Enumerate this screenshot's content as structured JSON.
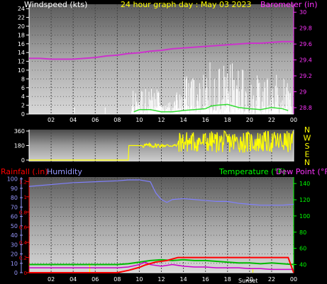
{
  "chart_data": [
    {
      "type": "line",
      "title": "24 hour graph day : May 03 2023",
      "ylabel_left": "Windspeed (kts)",
      "ylabel_right": "Barometer (in)",
      "x_ticks": [
        "02",
        "04",
        "06",
        "08",
        "10",
        "12",
        "14",
        "16",
        "18",
        "20",
        "22",
        "00"
      ],
      "xlim": [
        0,
        24
      ],
      "y_left_ticks": [
        "0",
        "2",
        "4",
        "6",
        "8",
        "10",
        "12",
        "14",
        "16",
        "18",
        "20",
        "22",
        "24"
      ],
      "ylim_left": [
        0,
        25
      ],
      "y_right_ticks": [
        "28.8",
        "29",
        "29.2",
        "29.4",
        "29.6",
        "29.8",
        "30"
      ],
      "ylim_right": [
        28.72,
        30.1
      ],
      "colors": {
        "barometer": "#cc33cc",
        "wind_speed": "#ffffff",
        "wind_avg": "#33dd33",
        "title": "#ffff00",
        "right_axis": "#ff33ff",
        "left_axis": "#ffffff",
        "frame": "#ffffff"
      },
      "series": [
        {
          "key": "barometer",
          "x": [
            0,
            1,
            2,
            3,
            4,
            5,
            6,
            7,
            8,
            9,
            10,
            11,
            12,
            13,
            14,
            15,
            16,
            17,
            18,
            19,
            20,
            21,
            22,
            23,
            24
          ],
          "values": [
            29.42,
            29.42,
            29.41,
            29.41,
            29.41,
            29.42,
            29.43,
            29.45,
            29.46,
            29.48,
            29.49,
            29.51,
            29.52,
            29.54,
            29.55,
            29.56,
            29.57,
            29.58,
            29.59,
            29.6,
            29.61,
            29.61,
            29.62,
            29.63,
            29.63
          ]
        },
        {
          "key": "wind_avg",
          "x": [
            9.5,
            10,
            11,
            12,
            13,
            14,
            15,
            16,
            16.5,
            17,
            18,
            19,
            20,
            21,
            22,
            23,
            23.5
          ],
          "values": [
            0.5,
            1,
            1,
            0.5,
            0.5,
            0.8,
            1,
            1.2,
            1.8,
            2,
            2.2,
            1.5,
            1.2,
            1,
            1.5,
            1.2,
            0.8
          ]
        }
      ]
    },
    {
      "type": "line",
      "ylabel_right": "N W S E N",
      "y_left_ticks": [
        "360",
        "180",
        "0"
      ],
      "ylim": [
        0,
        360
      ],
      "x_ticks": [
        "02",
        "04",
        "06",
        "08",
        "10",
        "12",
        "14",
        "16",
        "18",
        "20",
        "22",
        "00"
      ],
      "colors": {
        "direction": "#ffff00"
      },
      "series": [
        {
          "key": "direction",
          "x": [
            0,
            9,
            9.2,
            10,
            10.5,
            11,
            11.5,
            12,
            12.5,
            13,
            14,
            14.5,
            15,
            15.5,
            16,
            16.5,
            17,
            17.5,
            18,
            18.5,
            19,
            19.5,
            20,
            20.5,
            21,
            21.5,
            22,
            22.5,
            23,
            23.5,
            24
          ],
          "values": [
            0,
            0,
            180,
            180,
            120,
            230,
            300,
            200,
            190,
            180,
            310,
            150,
            280,
            200,
            330,
            250,
            300,
            180,
            320,
            260,
            300,
            200,
            340,
            250,
            310,
            220,
            300,
            260,
            280,
            150,
            120
          ]
        }
      ]
    },
    {
      "type": "line",
      "ylabel_left": "Rainfall (.in)",
      "ylabel_left2": "Humidity",
      "ylabel_right": "Temperature (°F)",
      "ylabel_right2": "Dew Point (°F)",
      "x_ticks": [
        "02",
        "04",
        "06",
        "08",
        "10",
        "12",
        "14",
        "16",
        "18",
        "20",
        "22",
        "00"
      ],
      "x_label_extra": "Sunset",
      "y_humidity_ticks": [
        "0",
        "10",
        "20",
        "30",
        "40",
        "50",
        "60",
        "70",
        "80",
        "90",
        "100"
      ],
      "ylim_humidity": [
        0,
        102
      ],
      "y_rain_ticks": [
        "0",
        "0.2",
        "0.4",
        "0.6",
        "0.8",
        "1",
        "1.2"
      ],
      "ylim_rain": [
        0,
        1.26
      ],
      "y_temp_ticks": [
        "40",
        "60",
        "80",
        "100",
        "120",
        "140"
      ],
      "ylim_temp": [
        30,
        148
      ],
      "colors": {
        "rain": "#ff0000",
        "humidity": "#8080ff",
        "temperature": "#00bb00",
        "dewpoint": "#cc00cc",
        "rain_label": "#ff0000",
        "humidity_label": "#9999ff",
        "temp_label": "#00ff00",
        "dew_label": "#ff33ff"
      },
      "series": [
        {
          "key": "humidity",
          "x": [
            0,
            2,
            4,
            6,
            8,
            9,
            10,
            11,
            11.5,
            12,
            12.5,
            13,
            14,
            15,
            16,
            17,
            18,
            19,
            20,
            21,
            22,
            23,
            24
          ],
          "values": [
            92,
            94,
            96,
            97,
            98,
            99,
            99,
            97,
            85,
            78,
            75,
            78,
            79,
            78,
            77,
            76,
            76,
            74,
            73,
            72,
            72,
            72,
            73
          ]
        },
        {
          "key": "temperature",
          "x": [
            0,
            2,
            4,
            6,
            8,
            9,
            10,
            11,
            12,
            13,
            14,
            15,
            16,
            17,
            18,
            19,
            20,
            21,
            22,
            23,
            24
          ],
          "values": [
            40,
            40,
            40,
            40,
            40,
            41,
            43,
            45,
            46,
            45,
            46,
            45,
            45,
            44,
            43,
            42,
            42,
            41,
            42,
            41,
            40
          ]
        },
        {
          "key": "dewpoint",
          "x": [
            0,
            2,
            4,
            6,
            8,
            9,
            10,
            10.5,
            11,
            12,
            13,
            14,
            15,
            16,
            17,
            18,
            19,
            20,
            21,
            22,
            23,
            24
          ],
          "values": [
            36,
            36,
            36,
            36,
            36,
            37,
            40,
            43,
            40,
            38,
            40,
            38,
            37,
            37,
            36,
            36,
            36,
            35,
            35,
            34,
            34,
            34
          ]
        },
        {
          "key": "rain",
          "x": [
            0,
            4,
            8,
            9,
            10,
            10.5,
            11,
            11.5,
            12,
            12.5,
            13,
            13.5,
            14,
            16,
            18,
            20,
            22,
            23.5,
            24
          ],
          "values": [
            0,
            0,
            0,
            0.03,
            0.07,
            0.1,
            0.12,
            0.14,
            0.15,
            0.16,
            0.18,
            0.2,
            0.2,
            0.2,
            0.2,
            0.2,
            0.2,
            0.2,
            0
          ]
        }
      ]
    }
  ]
}
